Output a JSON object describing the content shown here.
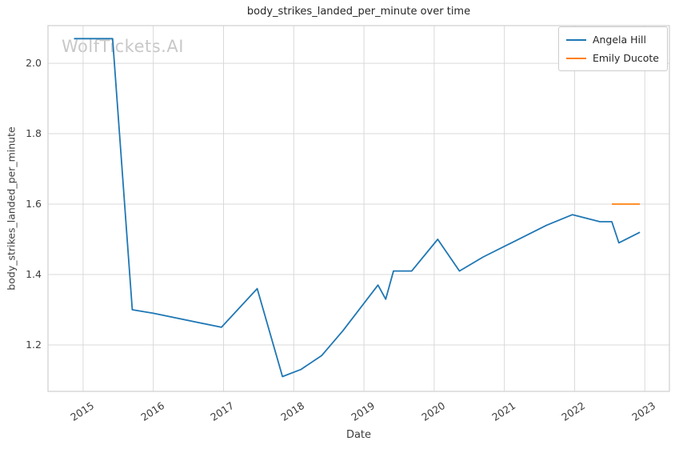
{
  "watermark": {
    "text": "WolfTickets.AI"
  },
  "chart_data": {
    "type": "line",
    "title": "body_strikes_landed_per_minute over time",
    "xlabel": "Date",
    "ylabel": "body_strikes_landed_per_minute",
    "grid": true,
    "legend_position": "upper right",
    "xlim": [
      2014.5,
      2023.35
    ],
    "ylim": [
      1.068,
      2.107
    ],
    "x_ticks": [
      2015,
      2016,
      2017,
      2018,
      2019,
      2020,
      2021,
      2022,
      2023
    ],
    "y_ticks": [
      1.2,
      1.4,
      1.6,
      1.8,
      2.0
    ],
    "series": [
      {
        "name": "Angela Hill",
        "color": "#1f77b4",
        "points": [
          [
            2014.87,
            2.07
          ],
          [
            2015.42,
            2.07
          ],
          [
            2015.7,
            1.3
          ],
          [
            2016.0,
            1.29
          ],
          [
            2016.97,
            1.25
          ],
          [
            2017.48,
            1.36
          ],
          [
            2017.84,
            1.11
          ],
          [
            2018.1,
            1.13
          ],
          [
            2018.4,
            1.17
          ],
          [
            2018.7,
            1.24
          ],
          [
            2019.2,
            1.37
          ],
          [
            2019.31,
            1.33
          ],
          [
            2019.42,
            1.41
          ],
          [
            2019.68,
            1.41
          ],
          [
            2020.05,
            1.5
          ],
          [
            2020.36,
            1.41
          ],
          [
            2020.7,
            1.45
          ],
          [
            2021.1,
            1.49
          ],
          [
            2021.6,
            1.54
          ],
          [
            2021.97,
            1.57
          ],
          [
            2022.36,
            1.55
          ],
          [
            2022.53,
            1.55
          ],
          [
            2022.63,
            1.49
          ],
          [
            2022.93,
            1.52
          ]
        ]
      },
      {
        "name": "Emily Ducote",
        "color": "#ff7f0e",
        "points": [
          [
            2022.53,
            1.6
          ],
          [
            2022.93,
            1.6
          ]
        ]
      }
    ]
  }
}
